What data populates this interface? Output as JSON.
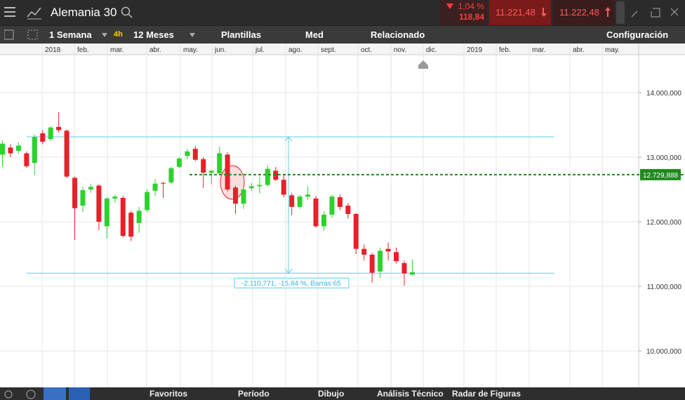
{
  "header": {
    "instrument": "Alemania 30",
    "change_percent": "1,04 %",
    "change_points": "118,84",
    "sell": "11.221,48",
    "buy": "11.222,48"
  },
  "toolbar": {
    "items": [
      "1 Semana",
      "4h",
      "12 Meses",
      "Plantillas",
      "Med",
      "Relacionado",
      "Configuración"
    ]
  },
  "chart_data": {
    "type": "candlestick",
    "months": [
      "2018",
      "feb.",
      "mar.",
      "abr.",
      "may.",
      "jun.",
      "jul.",
      "ago.",
      "sept.",
      "oct.",
      "nov.",
      "dic.",
      "2019",
      "feb.",
      "mar.",
      "abr.",
      "may."
    ],
    "open": [
      13040,
      13150,
      13100,
      13060,
      12910,
      13370,
      13280,
      13470,
      13410,
      12680,
      12250,
      12500,
      12560,
      11930,
      12360,
      12370,
      12140,
      11980,
      12180,
      12480,
      12600,
      12610,
      12850,
      13020,
      13130,
      12970,
      12760,
      12750,
      13040,
      12530,
      12280,
      12520,
      12550,
      12570,
      12790,
      12650,
      12410,
      12230,
      12390,
      12360,
      11930,
      12110,
      12380,
      12250,
      12120,
      11580,
      11490,
      11230,
      11580,
      11530,
      11360,
      11180
    ],
    "high": [
      13260,
      13200,
      13230,
      13090,
      13350,
      13420,
      13480,
      13700,
      13430,
      12700,
      12540,
      12580,
      12580,
      12380,
      12420,
      12400,
      12170,
      12230,
      12500,
      12660,
      12620,
      12850,
      13000,
      13130,
      13170,
      13000,
      12800,
      13160,
      13080,
      12560,
      12550,
      12600,
      12700,
      12870,
      12850,
      12720,
      12450,
      12420,
      12550,
      12400,
      12160,
      12420,
      12420,
      12290,
      12140,
      11650,
      11520,
      11600,
      11680,
      11600,
      11400,
      11420
    ],
    "low": [
      12850,
      13000,
      13050,
      12830,
      12720,
      13200,
      13250,
      13380,
      12680,
      11720,
      12150,
      12450,
      11870,
      11740,
      12300,
      11760,
      11700,
      11830,
      12150,
      12400,
      12370,
      12580,
      12830,
      12970,
      12940,
      12520,
      12580,
      12730,
      12470,
      12120,
      12200,
      12480,
      12440,
      12550,
      12630,
      12380,
      12100,
      12200,
      12340,
      11910,
      11860,
      12060,
      12180,
      12050,
      11500,
      11400,
      11060,
      11130,
      11400,
      11350,
      11010,
      11170
    ],
    "close": [
      13210,
      13060,
      13180,
      12860,
      13310,
      13240,
      13460,
      13420,
      12700,
      12210,
      12490,
      12540,
      12000,
      12360,
      12390,
      11780,
      11770,
      12170,
      12460,
      12590,
      12590,
      12830,
      12980,
      13090,
      12960,
      12760,
      12790,
      13060,
      12500,
      12280,
      12500,
      12550,
      12570,
      12820,
      12650,
      12420,
      12230,
      12390,
      12420,
      11930,
      12110,
      12390,
      12230,
      12120,
      11580,
      11490,
      11210,
      11550,
      11540,
      11390,
      11200,
      11220
    ],
    "colors": {
      "up": "#2ed12e",
      "down": "#e8202a"
    },
    "ylim": [
      9435,
      14587
    ],
    "yticks": [
      {
        "value": 10000,
        "label": "10.000,000"
      },
      {
        "value": 11000,
        "label": "11.000,000"
      },
      {
        "value": 12000,
        "label": "12.000,000"
      },
      {
        "value": 13000,
        "label": "13.000,000"
      },
      {
        "value": 14000,
        "label": "14.000,000"
      }
    ],
    "grid": true,
    "price_line": {
      "value": 12729.888,
      "label": "12.729,888",
      "color": "#1e8a1e"
    },
    "measure": {
      "high": 13315,
      "low": 11204,
      "label": "-2.110,771, -15,84 %, Barras:65",
      "color": "#5ccfe8"
    }
  },
  "footer": {
    "items": [
      "Favoritos",
      "Período",
      "Dibujo",
      "Análisis Técnico",
      "Radar de Figuras"
    ]
  }
}
